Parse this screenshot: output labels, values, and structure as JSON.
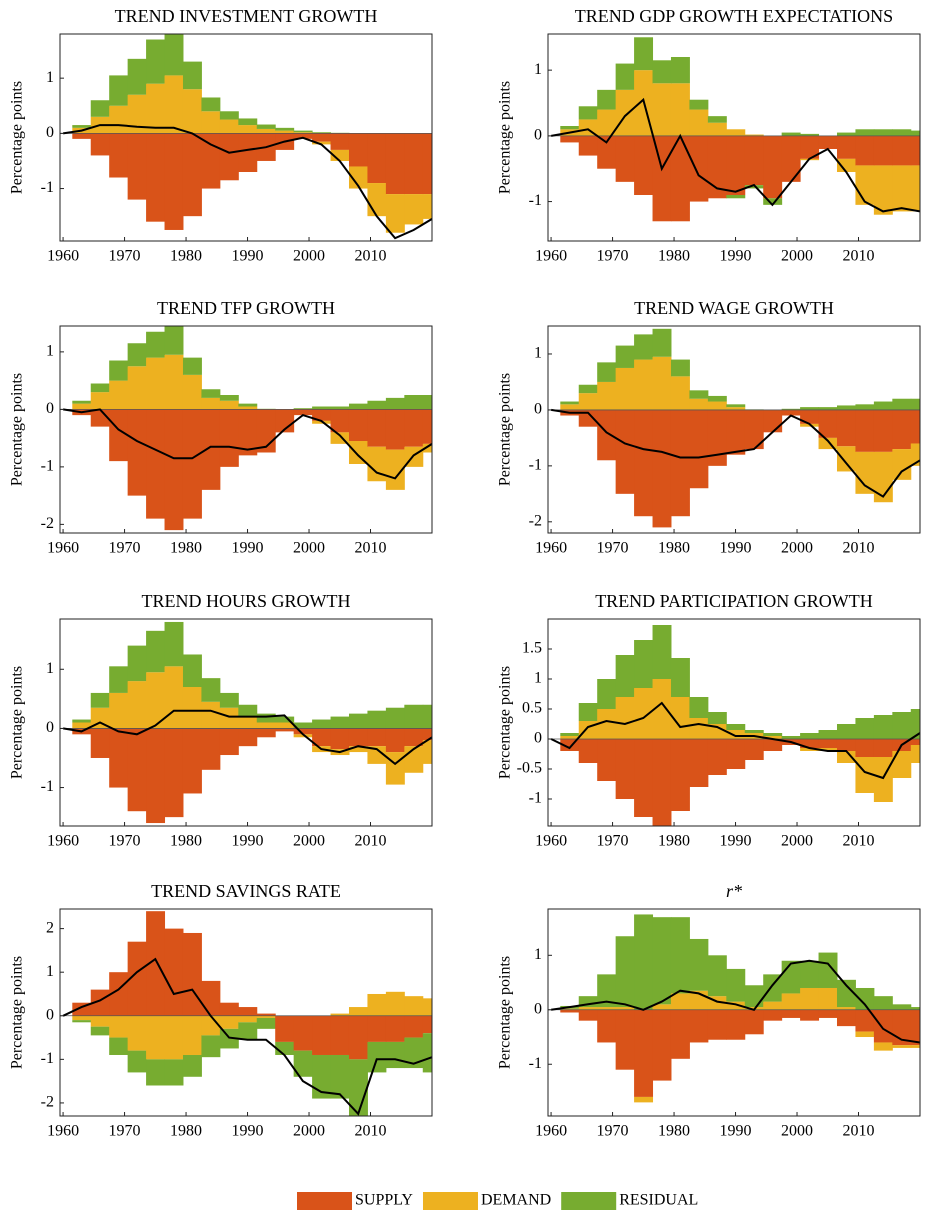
{
  "legend": [
    {
      "name": "SUPPLY",
      "color": "#d95319"
    },
    {
      "name": "DEMAND",
      "color": "#edb120"
    },
    {
      "name": "RESIDUAL",
      "color": "#77ac30"
    }
  ],
  "chart_data": [
    {
      "type": "stacked-bar-line",
      "title": "TREND INVESTMENT GROWTH",
      "ylabel": "Percentage points",
      "x": [
        1960,
        1963,
        1966,
        1969,
        1972,
        1975,
        1978,
        1981,
        1984,
        1987,
        1990,
        1993,
        1996,
        1999,
        2002,
        2005,
        2008,
        2011,
        2014,
        2017,
        2020
      ],
      "xlim": [
        1959.5,
        2020
      ],
      "xticks": [
        1960,
        1970,
        1980,
        1990,
        2000,
        2010
      ],
      "ylim": [
        -1.95,
        1.8
      ],
      "yticks": [
        -1,
        0,
        1
      ],
      "series": [
        {
          "values": [
            0,
            -0.1,
            -0.4,
            -0.8,
            -1.2,
            -1.6,
            -1.75,
            -1.5,
            -1.0,
            -0.85,
            -0.7,
            -0.5,
            -0.3,
            -0.1,
            -0.15,
            -0.3,
            -0.6,
            -0.9,
            -1.1,
            -1.1,
            -1.1
          ]
        },
        {
          "values": [
            0,
            0.1,
            0.3,
            0.5,
            0.7,
            0.9,
            1.05,
            0.8,
            0.4,
            0.25,
            0.15,
            0.08,
            0.05,
            0.02,
            -0.05,
            -0.2,
            -0.4,
            -0.6,
            -0.7,
            -0.55,
            -0.45
          ]
        },
        {
          "values": [
            0,
            0.05,
            0.3,
            0.55,
            0.65,
            0.8,
            0.75,
            0.5,
            0.25,
            0.15,
            0.12,
            0.08,
            0.05,
            0.03,
            0.02,
            0.01,
            0,
            0,
            0,
            0,
            0
          ]
        }
      ],
      "total": {
        "color": "#000000",
        "values": [
          0,
          0.05,
          0.15,
          0.15,
          0.12,
          0.1,
          0.1,
          0.0,
          -0.2,
          -0.35,
          -0.3,
          -0.25,
          -0.15,
          -0.08,
          -0.2,
          -0.5,
          -0.95,
          -1.5,
          -1.9,
          -1.75,
          -1.55
        ]
      }
    },
    {
      "type": "stacked-bar-line",
      "title": "TREND GDP GROWTH EXPECTATIONS",
      "ylabel": "Percentage points",
      "x": [
        1960,
        1963,
        1966,
        1969,
        1972,
        1975,
        1978,
        1981,
        1984,
        1987,
        1990,
        1993,
        1996,
        1999,
        2002,
        2005,
        2008,
        2011,
        2014,
        2017,
        2020
      ],
      "xlim": [
        1959.5,
        2020
      ],
      "xticks": [
        1960,
        1970,
        1980,
        1990,
        2000,
        2010
      ],
      "ylim": [
        -1.6,
        1.55
      ],
      "yticks": [
        -1,
        0,
        1
      ],
      "series": [
        {
          "values": [
            0,
            -0.1,
            -0.3,
            -0.5,
            -0.7,
            -0.9,
            -1.3,
            -1.3,
            -1.0,
            -0.95,
            -0.9,
            -0.75,
            -0.95,
            -0.7,
            -0.35,
            -0.2,
            -0.35,
            -0.45,
            -0.45,
            -0.45,
            -0.45
          ]
        },
        {
          "values": [
            0,
            0.1,
            0.25,
            0.4,
            0.7,
            1.0,
            0.8,
            0.8,
            0.4,
            0.2,
            0.1,
            0.02,
            0,
            0,
            -0.02,
            0,
            -0.2,
            -0.6,
            -0.75,
            -0.7,
            -0.7
          ]
        },
        {
          "values": [
            0,
            0.05,
            0.2,
            0.3,
            0.4,
            0.5,
            0.35,
            0.4,
            0.15,
            0.1,
            -0.05,
            -0.05,
            -0.1,
            0.05,
            0.03,
            0,
            0.05,
            0.1,
            0.1,
            0.1,
            0.08
          ]
        }
      ],
      "total": {
        "color": "#000000",
        "values": [
          0,
          0.05,
          0.1,
          -0.1,
          0.3,
          0.55,
          -0.5,
          0.0,
          -0.6,
          -0.8,
          -0.85,
          -0.75,
          -1.05,
          -0.7,
          -0.35,
          -0.2,
          -0.55,
          -1.0,
          -1.15,
          -1.1,
          -1.15
        ]
      }
    },
    {
      "type": "stacked-bar-line",
      "title": "TREND TFP GROWTH",
      "ylabel": "Percentage points",
      "x": [
        1960,
        1963,
        1966,
        1969,
        1972,
        1975,
        1978,
        1981,
        1984,
        1987,
        1990,
        1993,
        1996,
        1999,
        2002,
        2005,
        2008,
        2011,
        2014,
        2017,
        2020
      ],
      "xlim": [
        1959.5,
        2020
      ],
      "xticks": [
        1960,
        1970,
        1980,
        1990,
        2000,
        2010
      ],
      "ylim": [
        -2.15,
        1.45
      ],
      "yticks": [
        -2,
        -1,
        0,
        1
      ],
      "series": [
        {
          "values": [
            0,
            -0.1,
            -0.3,
            -0.9,
            -1.5,
            -1.9,
            -2.1,
            -1.9,
            -1.4,
            -1.0,
            -0.8,
            -0.75,
            -0.4,
            -0.1,
            -0.2,
            -0.4,
            -0.55,
            -0.65,
            -0.7,
            -0.65,
            -0.6
          ]
        },
        {
          "values": [
            0,
            0.1,
            0.3,
            0.5,
            0.75,
            0.9,
            0.95,
            0.6,
            0.2,
            0.15,
            0.05,
            0,
            0,
            0,
            -0.05,
            -0.2,
            -0.4,
            -0.6,
            -0.7,
            -0.35,
            -0.15
          ]
        },
        {
          "values": [
            0,
            0.05,
            0.15,
            0.35,
            0.4,
            0.45,
            0.5,
            0.3,
            0.15,
            0.1,
            0.05,
            0.01,
            0,
            0.02,
            0.05,
            0.05,
            0.1,
            0.15,
            0.2,
            0.25,
            0.25
          ]
        }
      ],
      "total": {
        "color": "#000000",
        "values": [
          0,
          -0.05,
          0.0,
          -0.35,
          -0.55,
          -0.7,
          -0.85,
          -0.85,
          -0.65,
          -0.65,
          -0.7,
          -0.65,
          -0.35,
          -0.1,
          -0.2,
          -0.45,
          -0.8,
          -1.1,
          -1.2,
          -0.8,
          -0.6
        ]
      }
    },
    {
      "type": "stacked-bar-line",
      "title": "TREND WAGE GROWTH",
      "ylabel": "Percentage points",
      "x": [
        1960,
        1963,
        1966,
        1969,
        1972,
        1975,
        1978,
        1981,
        1984,
        1987,
        1990,
        1993,
        1996,
        1999,
        2002,
        2005,
        2008,
        2011,
        2014,
        2017,
        2020
      ],
      "xlim": [
        1959.5,
        2020
      ],
      "xticks": [
        1960,
        1970,
        1980,
        1990,
        2000,
        2010
      ],
      "ylim": [
        -2.2,
        1.5
      ],
      "yticks": [
        -2,
        -1,
        0,
        1
      ],
      "series": [
        {
          "values": [
            0,
            -0.1,
            -0.3,
            -0.9,
            -1.5,
            -1.9,
            -2.1,
            -1.9,
            -1.4,
            -1.0,
            -0.8,
            -0.7,
            -0.4,
            -0.1,
            -0.25,
            -0.5,
            -0.65,
            -0.75,
            -0.75,
            -0.7,
            -0.6
          ]
        },
        {
          "values": [
            0,
            0.1,
            0.3,
            0.5,
            0.75,
            0.9,
            0.95,
            0.6,
            0.2,
            0.15,
            0.05,
            0,
            0,
            0,
            -0.05,
            -0.2,
            -0.45,
            -0.75,
            -0.9,
            -0.55,
            -0.4
          ]
        },
        {
          "values": [
            0,
            0.05,
            0.15,
            0.35,
            0.4,
            0.45,
            0.5,
            0.3,
            0.15,
            0.1,
            0.05,
            0.01,
            0,
            0.02,
            0.05,
            0.05,
            0.08,
            0.1,
            0.15,
            0.2,
            0.2
          ]
        }
      ],
      "total": {
        "color": "#000000",
        "values": [
          0,
          -0.05,
          -0.05,
          -0.4,
          -0.6,
          -0.7,
          -0.75,
          -0.85,
          -0.85,
          -0.8,
          -0.75,
          -0.7,
          -0.4,
          -0.1,
          -0.25,
          -0.55,
          -0.95,
          -1.35,
          -1.55,
          -1.1,
          -0.9
        ]
      }
    },
    {
      "type": "stacked-bar-line",
      "title": "TREND HOURS GROWTH",
      "ylabel": "Percentage points",
      "x": [
        1960,
        1963,
        1966,
        1969,
        1972,
        1975,
        1978,
        1981,
        1984,
        1987,
        1990,
        1993,
        1996,
        1999,
        2002,
        2005,
        2008,
        2011,
        2014,
        2017,
        2020
      ],
      "xlim": [
        1959.5,
        2020
      ],
      "xticks": [
        1960,
        1970,
        1980,
        1990,
        2000,
        2010
      ],
      "ylim": [
        -1.65,
        1.85
      ],
      "yticks": [
        -1,
        0,
        1
      ],
      "series": [
        {
          "values": [
            0,
            -0.1,
            -0.5,
            -1.0,
            -1.4,
            -1.6,
            -1.5,
            -1.1,
            -0.7,
            -0.45,
            -0.3,
            -0.15,
            -0.05,
            -0.1,
            -0.3,
            -0.35,
            -0.3,
            -0.3,
            -0.4,
            -0.3,
            -0.2
          ]
        },
        {
          "values": [
            0,
            0.1,
            0.35,
            0.6,
            0.8,
            0.95,
            1.05,
            0.7,
            0.45,
            0.35,
            0.2,
            0.1,
            0.1,
            -0.05,
            -0.1,
            -0.1,
            -0.1,
            -0.3,
            -0.55,
            -0.45,
            -0.4
          ]
        },
        {
          "values": [
            0,
            0.05,
            0.25,
            0.45,
            0.6,
            0.7,
            0.75,
            0.55,
            0.4,
            0.25,
            0.2,
            0.15,
            0.1,
            0.1,
            0.15,
            0.2,
            0.25,
            0.3,
            0.35,
            0.4,
            0.4
          ]
        }
      ],
      "total": {
        "color": "#000000",
        "values": [
          0,
          -0.05,
          0.1,
          -0.05,
          -0.1,
          0.05,
          0.3,
          0.3,
          0.3,
          0.2,
          0.2,
          0.2,
          0.22,
          -0.1,
          -0.35,
          -0.4,
          -0.3,
          -0.35,
          -0.6,
          -0.35,
          -0.15
        ]
      }
    },
    {
      "type": "stacked-bar-line",
      "title": "TREND PARTICIPATION GROWTH",
      "ylabel": "Percentage points",
      "x": [
        1960,
        1963,
        1966,
        1969,
        1972,
        1975,
        1978,
        1981,
        1984,
        1987,
        1990,
        1993,
        1996,
        1999,
        2002,
        2005,
        2008,
        2011,
        2014,
        2017,
        2020
      ],
      "xlim": [
        1959.5,
        2020
      ],
      "xticks": [
        1960,
        1970,
        1980,
        1990,
        2000,
        2010
      ],
      "ylim": [
        -1.45,
        2.0
      ],
      "yticks": [
        -1,
        -0.5,
        0,
        0.5,
        1,
        1.5
      ],
      "series": [
        {
          "values": [
            0,
            -0.2,
            -0.4,
            -0.7,
            -1.0,
            -1.3,
            -1.45,
            -1.2,
            -0.8,
            -0.6,
            -0.5,
            -0.35,
            -0.2,
            -0.1,
            -0.15,
            -0.15,
            -0.2,
            -0.3,
            -0.3,
            -0.2,
            -0.1
          ]
        },
        {
          "values": [
            0,
            0.05,
            0.3,
            0.5,
            0.7,
            0.85,
            1.0,
            0.7,
            0.35,
            0.25,
            0.15,
            0.1,
            0.05,
            0,
            -0.05,
            -0.05,
            -0.2,
            -0.6,
            -0.75,
            -0.45,
            -0.3
          ]
        },
        {
          "values": [
            0,
            0.05,
            0.3,
            0.5,
            0.7,
            0.8,
            0.9,
            0.65,
            0.35,
            0.2,
            0.1,
            0.05,
            0.05,
            0.05,
            0.1,
            0.15,
            0.25,
            0.35,
            0.4,
            0.45,
            0.5
          ]
        }
      ],
      "total": {
        "color": "#000000",
        "values": [
          0,
          -0.15,
          0.2,
          0.3,
          0.25,
          0.35,
          0.6,
          0.2,
          0.25,
          0.2,
          0.05,
          0.05,
          0.0,
          -0.05,
          -0.15,
          -0.2,
          -0.2,
          -0.55,
          -0.65,
          -0.1,
          0.1
        ]
      }
    },
    {
      "type": "stacked-bar-line",
      "title": "TREND SAVINGS RATE",
      "ylabel": "Percentage points",
      "x": [
        1960,
        1963,
        1966,
        1969,
        1972,
        1975,
        1978,
        1981,
        1984,
        1987,
        1990,
        1993,
        1996,
        1999,
        2002,
        2005,
        2008,
        2011,
        2014,
        2017,
        2020
      ],
      "xlim": [
        1959.5,
        2020
      ],
      "xticks": [
        1960,
        1970,
        1980,
        1990,
        2000,
        2010
      ],
      "ylim": [
        -2.3,
        2.45
      ],
      "yticks": [
        -2,
        -1,
        0,
        1,
        2
      ],
      "series": [
        {
          "values": [
            0,
            0.3,
            0.6,
            1.0,
            1.7,
            2.4,
            2.0,
            1.9,
            0.8,
            0.3,
            0.2,
            0.05,
            -0.6,
            -0.8,
            -0.9,
            -0.9,
            -1.0,
            -0.6,
            -0.6,
            -0.5,
            -0.4
          ]
        },
        {
          "values": [
            0,
            -0.1,
            -0.25,
            -0.5,
            -0.8,
            -1.0,
            -1.0,
            -0.9,
            -0.45,
            -0.3,
            -0.15,
            -0.05,
            0,
            0,
            0,
            0.05,
            0.2,
            0.5,
            0.55,
            0.45,
            0.4
          ]
        },
        {
          "values": [
            0,
            -0.05,
            -0.2,
            -0.4,
            -0.5,
            -0.6,
            -0.6,
            -0.5,
            -0.5,
            -0.45,
            -0.4,
            -0.25,
            -0.3,
            -0.6,
            -1.0,
            -1.0,
            -1.3,
            -0.7,
            -0.6,
            -0.7,
            -0.9
          ]
        }
      ],
      "total": {
        "color": "#000000",
        "values": [
          0,
          0.2,
          0.35,
          0.6,
          1.0,
          1.3,
          0.5,
          0.6,
          0.0,
          -0.5,
          -0.55,
          -0.55,
          -0.9,
          -1.5,
          -1.75,
          -1.8,
          -2.25,
          -1.0,
          -1.0,
          -1.1,
          -0.95
        ]
      }
    },
    {
      "type": "stacked-bar-line",
      "title": "r*",
      "ylabel": "Percentage points",
      "x": [
        1960,
        1963,
        1966,
        1969,
        1972,
        1975,
        1978,
        1981,
        1984,
        1987,
        1990,
        1993,
        1996,
        1999,
        2002,
        2005,
        2008,
        2011,
        2014,
        2017,
        2020
      ],
      "xlim": [
        1959.5,
        2020
      ],
      "xticks": [
        1960,
        1970,
        1980,
        1990,
        2000,
        2010
      ],
      "ylim": [
        -1.95,
        1.85
      ],
      "yticks": [
        -1,
        0,
        1
      ],
      "series": [
        {
          "values": [
            0,
            -0.05,
            -0.2,
            -0.6,
            -1.1,
            -1.6,
            -1.3,
            -0.9,
            -0.6,
            -0.55,
            -0.55,
            -0.45,
            -0.2,
            -0.15,
            -0.2,
            -0.15,
            -0.3,
            -0.4,
            -0.6,
            -0.65,
            -0.65
          ]
        },
        {
          "values": [
            0,
            0.02,
            0.05,
            0.05,
            0.05,
            -0.1,
            0.1,
            0.3,
            0.35,
            0.25,
            0.15,
            0.05,
            0.15,
            0.3,
            0.4,
            0.4,
            0.05,
            -0.1,
            -0.15,
            -0.05,
            -0.05
          ]
        },
        {
          "values": [
            0,
            0.05,
            0.2,
            0.6,
            1.3,
            1.75,
            1.6,
            1.4,
            0.95,
            0.75,
            0.6,
            0.4,
            0.5,
            0.6,
            0.5,
            0.65,
            0.5,
            0.4,
            0.25,
            0.1,
            0.05
          ]
        }
      ],
      "total": {
        "color": "#000000",
        "values": [
          0,
          0.05,
          0.1,
          0.15,
          0.1,
          0.0,
          0.15,
          0.35,
          0.3,
          0.15,
          0.1,
          0.0,
          0.45,
          0.85,
          0.9,
          0.85,
          0.45,
          0.1,
          -0.35,
          -0.55,
          -0.6
        ]
      }
    }
  ]
}
